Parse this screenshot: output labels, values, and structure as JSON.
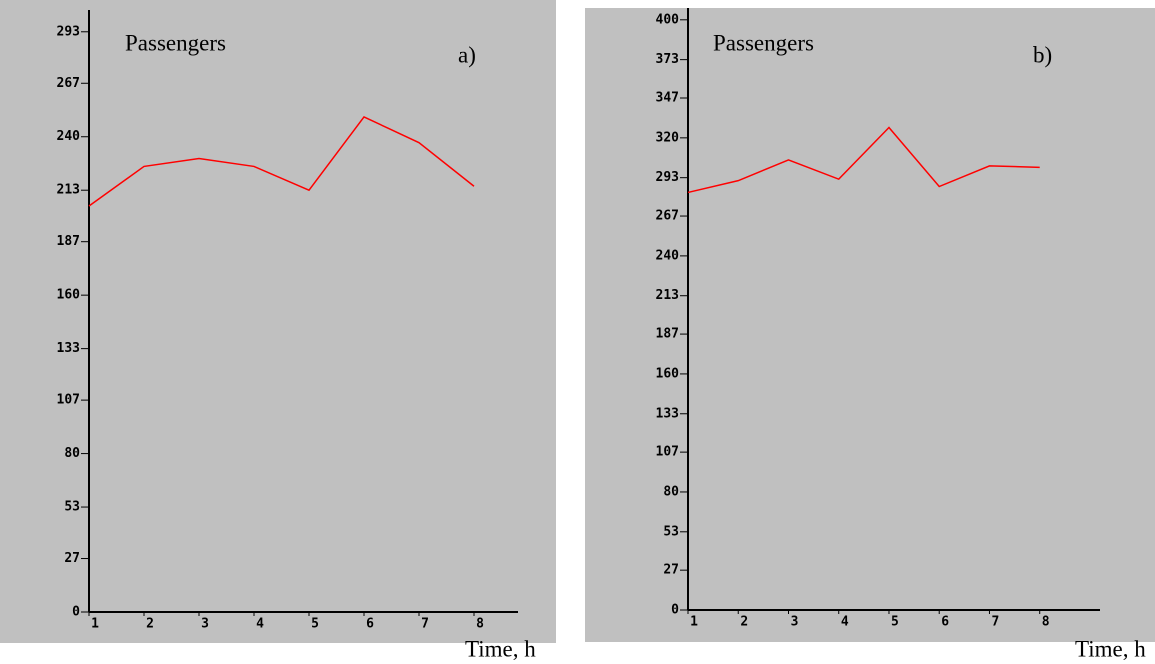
{
  "chart_data": [
    {
      "type": "line",
      "title": "Passengers",
      "annotation": "a)",
      "x_label": "Time, h",
      "x": [
        1,
        2,
        3,
        4,
        5,
        6,
        7,
        8
      ],
      "series": [
        {
          "color": "#ff0000",
          "values": [
            205,
            225,
            229,
            225,
            213,
            250,
            237,
            215
          ]
        }
      ],
      "xlim": [
        1,
        8.8
      ],
      "xticks": [
        1,
        2,
        3,
        4,
        5,
        6,
        7,
        8
      ],
      "ylim": [
        0,
        304
      ],
      "yticks": [
        0,
        27,
        53,
        80,
        107,
        133,
        160,
        187,
        213,
        240,
        267,
        293
      ]
    },
    {
      "type": "line",
      "title": "Passengers",
      "annotation": "b)",
      "x_label": "Time, h",
      "x": [
        1,
        2,
        3,
        4,
        5,
        6,
        7,
        8
      ],
      "series": [
        {
          "color": "#ff0000",
          "values": [
            283,
            291,
            305,
            292,
            327,
            287,
            301,
            300
          ]
        }
      ],
      "xlim": [
        1,
        9.2
      ],
      "xticks": [
        1,
        2,
        3,
        4,
        5,
        6,
        7,
        8
      ],
      "ylim": [
        0,
        408
      ],
      "yticks": [
        0,
        27,
        53,
        80,
        107,
        133,
        160,
        187,
        213,
        240,
        267,
        293,
        320,
        347,
        373,
        400
      ]
    }
  ]
}
